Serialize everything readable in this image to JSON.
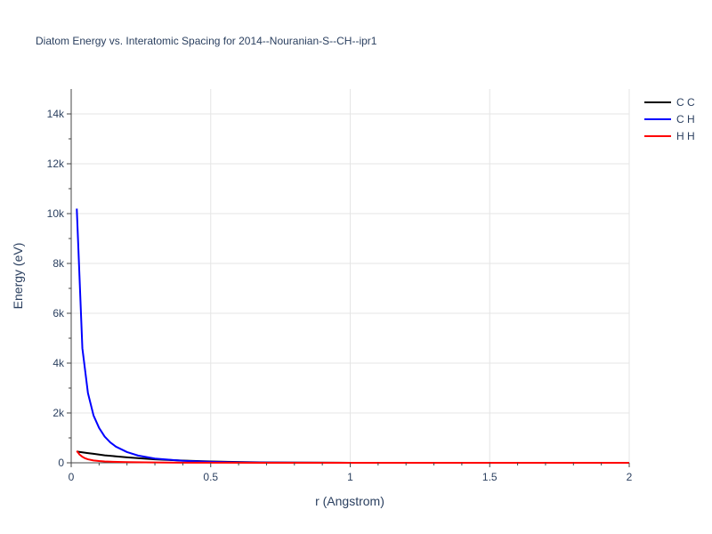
{
  "chart_data": {
    "type": "line",
    "title": "Diatom Energy vs. Interatomic Spacing for 2014--Nouranian-S--CH--ipr1",
    "xlabel": "r (Angstrom)",
    "ylabel": "Energy (eV)",
    "xlim": [
      0,
      2
    ],
    "ylim": [
      0,
      15000
    ],
    "xticks": [
      0,
      0.5,
      1,
      1.5,
      2
    ],
    "xtick_labels": [
      "0",
      "0.5",
      "1",
      "1.5",
      "2"
    ],
    "yticks": [
      0,
      2000,
      4000,
      6000,
      8000,
      10000,
      12000,
      14000
    ],
    "ytick_labels": [
      "0",
      "2k",
      "4k",
      "6k",
      "8k",
      "10k",
      "12k",
      "14k"
    ],
    "grid": true,
    "legend_position": "top-right",
    "series": [
      {
        "name": "C C",
        "color": "#000000",
        "x": [
          0.02,
          0.04,
          0.06,
          0.08,
          0.1,
          0.12,
          0.16,
          0.2,
          0.25,
          0.3,
          0.4,
          0.5,
          0.6,
          0.7,
          0.8,
          1.0,
          1.2,
          1.5,
          1.8,
          2.0
        ],
        "y": [
          450,
          420,
          390,
          360,
          330,
          300,
          260,
          220,
          180,
          140,
          90,
          55,
          30,
          15,
          8,
          2,
          0,
          0,
          0,
          0
        ]
      },
      {
        "name": "C H",
        "color": "#0000ff",
        "x": [
          0.02,
          0.04,
          0.06,
          0.08,
          0.1,
          0.12,
          0.14,
          0.16,
          0.2,
          0.24,
          0.3,
          0.4,
          0.5,
          0.6,
          0.7,
          0.8,
          1.0,
          1.2,
          1.5,
          1.8,
          2.0
        ],
        "y": [
          10200,
          4600,
          2800,
          1900,
          1400,
          1050,
          820,
          650,
          430,
          290,
          170,
          80,
          40,
          20,
          10,
          5,
          1,
          0,
          0,
          0,
          0
        ]
      },
      {
        "name": "H H",
        "color": "#ff0000",
        "x": [
          0.02,
          0.03,
          0.04,
          0.05,
          0.06,
          0.08,
          0.1,
          0.12,
          0.15,
          0.2,
          0.3,
          0.4,
          0.5,
          0.7,
          1.0,
          1.5,
          2.0
        ],
        "y": [
          480,
          330,
          240,
          180,
          140,
          95,
          70,
          55,
          40,
          25,
          12,
          6,
          3,
          1,
          0,
          0,
          0
        ]
      }
    ]
  }
}
